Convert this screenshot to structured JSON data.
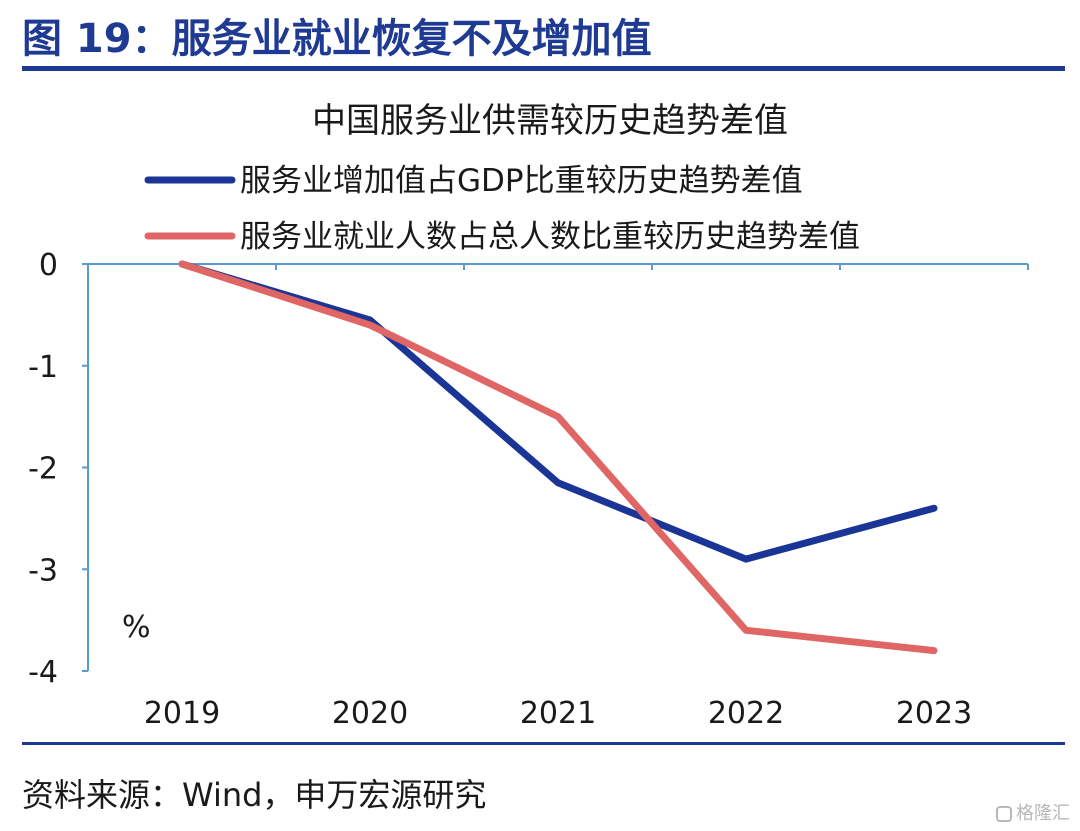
{
  "figure": {
    "title": "图 19：服务业就业恢复不及增加值",
    "source": "资料来源：Wind，申万宏源研究",
    "watermark": "格隆汇"
  },
  "colors": {
    "accent": "#1f3a93",
    "axis": "#5b9bd5"
  },
  "chart_data": {
    "type": "line",
    "title": "中国服务业供需较历史趋势差值",
    "x": [
      "2019",
      "2020",
      "2021",
      "2022",
      "2023"
    ],
    "series": [
      {
        "name": "服务业增加值占GDP比重较历史趋势差值",
        "color": "#1a3596",
        "values": [
          0,
          -0.55,
          -2.15,
          -2.9,
          -2.4
        ]
      },
      {
        "name": "服务业就业人数占总人数比重较历史趋势差值",
        "color": "#e06666",
        "values": [
          0,
          -0.6,
          -1.5,
          -3.6,
          -3.8
        ]
      }
    ],
    "ylim": [
      -4,
      0
    ],
    "yticks": [
      "0",
      "-1",
      "-2",
      "-3",
      "-4"
    ],
    "ylabel": "%",
    "xlabel": "",
    "grid": false,
    "legend": "top"
  }
}
